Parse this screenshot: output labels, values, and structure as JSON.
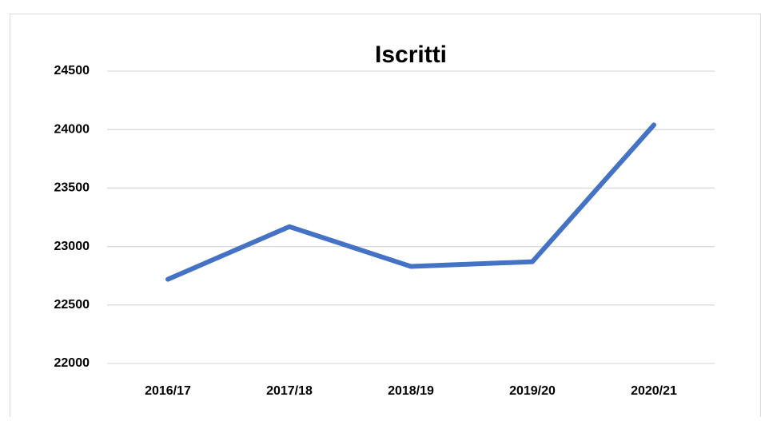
{
  "chart_data": {
    "type": "line",
    "title": "Iscritti",
    "categories": [
      "2016/17",
      "2017/18",
      "2018/19",
      "2019/20",
      "2020/21"
    ],
    "series": [
      {
        "name": "Iscritti",
        "color": "#4472c4",
        "values": [
          22720,
          23170,
          22830,
          22870,
          24040
        ]
      }
    ],
    "ylim": [
      22000,
      24500
    ],
    "yticks": [
      22000,
      22500,
      23000,
      23500,
      24000,
      24500
    ],
    "grid": true
  }
}
